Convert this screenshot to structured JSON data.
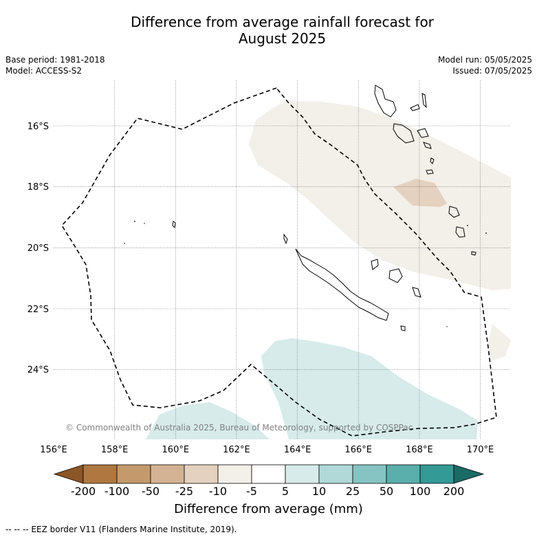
{
  "title_line1": "Difference from average rainfall forecast for",
  "title_line2": "August 2025",
  "base_period": "Base period: 1981-2018",
  "model": "Model: ACCESS-S2",
  "model_run": "Model run: 05/05/2025",
  "issued": "Issued: 07/05/2025",
  "copyright": "© Commonwealth of Australia 2025, Bureau of Meteorology, supported by COSPPac",
  "lat_labels": [
    "16°S",
    "18°S",
    "20°S",
    "22°S",
    "24°S"
  ],
  "lon_labels": [
    "156°E",
    "158°E",
    "160°E",
    "162°E",
    "164°E",
    "166°E",
    "168°E",
    "170°E"
  ],
  "colorbar": {
    "title": "Difference from average (mm)",
    "tick_labels": [
      "-200",
      "-100",
      "-50",
      "-25",
      "-10",
      "-5",
      "5",
      "10",
      "25",
      "50",
      "100",
      "200"
    ],
    "colors": [
      "#8c5626",
      "#b07840",
      "#c49a6c",
      "#d4b394",
      "#e5d1bf",
      "#f3efe9",
      "#ffffff",
      "#d6ebea",
      "#b0d9d8",
      "#85c4c2",
      "#5aaeab",
      "#339a96",
      "#1a6a66"
    ]
  },
  "footnote": "--  --  -- EEZ border V11 (Flanders Marine Institute, 2019)."
}
